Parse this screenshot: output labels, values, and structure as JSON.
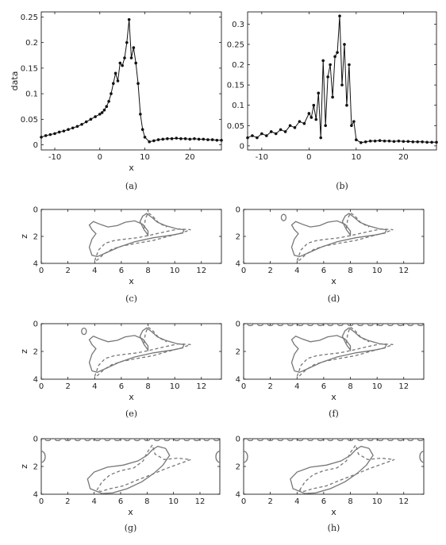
{
  "chart_data": [
    {
      "panel": "a",
      "caption": "(a)",
      "type": "line",
      "xlabel": "x",
      "ylabel": "data",
      "xlim": [
        -13,
        27
      ],
      "ylim": [
        -0.01,
        0.26
      ],
      "xticks": [
        -10,
        0,
        10,
        20
      ],
      "yticks": [
        0,
        0.05,
        0.1,
        0.15,
        0.2,
        0.25
      ],
      "ytick_labels": [
        "0",
        "0.05",
        "0.1",
        "0.15",
        "0.2",
        "0.25"
      ],
      "series": [
        {
          "x": [
            -13,
            -12,
            -11,
            -10,
            -9,
            -8,
            -7,
            -6,
            -5,
            -4,
            -3,
            -2,
            -1,
            0,
            0.5,
            1,
            1.5,
            2,
            2.5,
            3,
            3.5,
            4,
            4.5,
            5,
            5.5,
            6,
            6.5,
            7,
            7.5,
            8,
            8.5,
            9,
            9.5,
            10,
            11,
            12,
            13,
            14,
            15,
            16,
            17,
            18,
            19,
            20,
            21,
            22,
            23,
            24,
            25,
            26,
            27
          ],
          "y": [
            0.015,
            0.018,
            0.02,
            0.022,
            0.025,
            0.027,
            0.03,
            0.033,
            0.036,
            0.04,
            0.045,
            0.05,
            0.055,
            0.06,
            0.063,
            0.068,
            0.075,
            0.085,
            0.1,
            0.12,
            0.14,
            0.125,
            0.16,
            0.155,
            0.17,
            0.2,
            0.245,
            0.17,
            0.19,
            0.16,
            0.12,
            0.06,
            0.03,
            0.015,
            0.006,
            0.008,
            0.01,
            0.011,
            0.012,
            0.012,
            0.013,
            0.012,
            0.012,
            0.011,
            0.012,
            0.011,
            0.011,
            0.01,
            0.01,
            0.009,
            0.009
          ]
        }
      ]
    },
    {
      "panel": "b",
      "caption": "(b)",
      "type": "line",
      "xlabel": "",
      "ylabel": "",
      "xlim": [
        -13,
        27
      ],
      "ylim": [
        -0.01,
        0.33
      ],
      "xticks": [
        -10,
        0,
        10,
        20
      ],
      "yticks": [
        0,
        0.05,
        0.1,
        0.15,
        0.2,
        0.25,
        0.3
      ],
      "ytick_labels": [
        "0",
        "0.05",
        "0.1",
        "0.15",
        "0.2",
        "0.25",
        "0.3"
      ],
      "series": [
        {
          "x": [
            -13,
            -12,
            -11,
            -10,
            -9,
            -8,
            -7,
            -6,
            -5,
            -4,
            -3,
            -2,
            -1,
            0,
            0.5,
            1,
            1.5,
            2,
            2.5,
            3,
            3.5,
            4,
            4.5,
            5,
            5.5,
            6,
            6.5,
            7,
            7.5,
            8,
            8.5,
            9,
            9.5,
            10,
            11,
            12,
            13,
            14,
            15,
            16,
            17,
            18,
            19,
            20,
            21,
            22,
            23,
            24,
            25,
            26,
            27
          ],
          "y": [
            0.02,
            0.025,
            0.02,
            0.03,
            0.025,
            0.035,
            0.03,
            0.04,
            0.035,
            0.05,
            0.045,
            0.06,
            0.055,
            0.08,
            0.07,
            0.1,
            0.065,
            0.13,
            0.02,
            0.21,
            0.05,
            0.17,
            0.2,
            0.12,
            0.22,
            0.23,
            0.32,
            0.15,
            0.25,
            0.1,
            0.2,
            0.05,
            0.06,
            0.015,
            0.008,
            0.01,
            0.012,
            0.012,
            0.013,
            0.012,
            0.012,
            0.011,
            0.012,
            0.011,
            0.011,
            0.01,
            0.01,
            0.01,
            0.009,
            0.009,
            0.009
          ]
        }
      ]
    },
    {
      "panel": "c",
      "caption": "(c)",
      "type": "contour",
      "xlabel": "x",
      "ylabel": "z",
      "xlim": [
        0,
        13.5
      ],
      "ylim": [
        0,
        4
      ],
      "y_inverted": true,
      "xticks": [
        0,
        2,
        4,
        6,
        8,
        10,
        12
      ],
      "yticks": [
        0,
        2,
        4
      ]
    },
    {
      "panel": "d",
      "caption": "(d)",
      "type": "contour",
      "xlabel": "x",
      "ylabel": "",
      "xlim": [
        0,
        13.5
      ],
      "ylim": [
        0,
        4
      ],
      "y_inverted": true,
      "xticks": [
        0,
        2,
        4,
        6,
        8,
        10,
        12
      ],
      "yticks": [
        0,
        2,
        4
      ]
    },
    {
      "panel": "e",
      "caption": "(e)",
      "type": "contour",
      "xlabel": "x",
      "ylabel": "z",
      "xlim": [
        0,
        13.5
      ],
      "ylim": [
        0,
        4
      ],
      "y_inverted": true,
      "xticks": [
        0,
        2,
        4,
        6,
        8,
        10,
        12
      ],
      "yticks": [
        0,
        2,
        4
      ]
    },
    {
      "panel": "f",
      "caption": "(f)",
      "type": "contour",
      "xlabel": "x",
      "ylabel": "",
      "xlim": [
        0,
        13.5
      ],
      "ylim": [
        0,
        4
      ],
      "y_inverted": true,
      "xticks": [
        0,
        2,
        4,
        6,
        8,
        10,
        12
      ],
      "yticks": [
        0,
        2,
        4
      ]
    },
    {
      "panel": "g",
      "caption": "(g)",
      "type": "contour",
      "xlabel": "x",
      "ylabel": "z",
      "xlim": [
        0,
        13.5
      ],
      "ylim": [
        0,
        4
      ],
      "y_inverted": true,
      "xticks": [
        0,
        2,
        4,
        6,
        8,
        10,
        12
      ],
      "yticks": [
        0,
        2,
        4
      ]
    },
    {
      "panel": "h",
      "caption": "(h)",
      "type": "contour",
      "xlabel": "x",
      "ylabel": "",
      "xlim": [
        0,
        13.5
      ],
      "ylim": [
        0,
        4
      ],
      "y_inverted": true,
      "xticks": [
        0,
        2,
        4,
        6,
        8,
        10,
        12
      ],
      "yticks": [
        0,
        2,
        4
      ]
    }
  ]
}
